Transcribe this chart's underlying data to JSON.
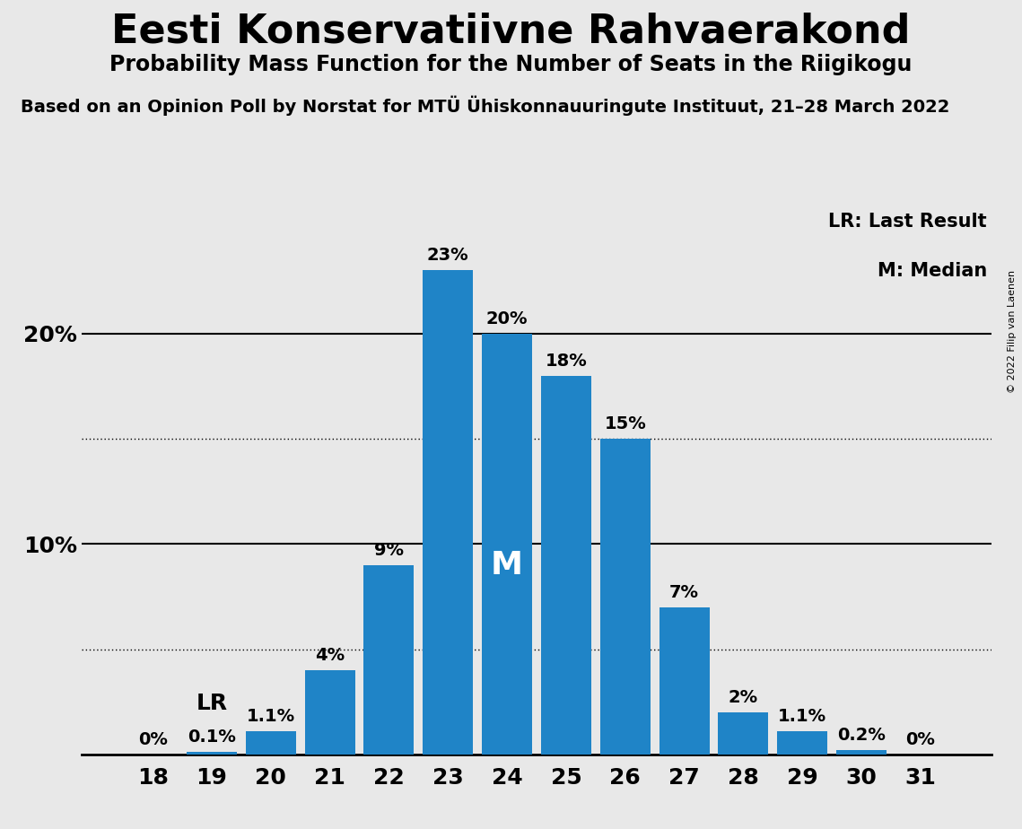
{
  "title": "Eesti Konservatiivne Rahvaerakond",
  "subtitle": "Probability Mass Function for the Number of Seats in the Riigikogu",
  "source_line": "Based on an Opinion Poll by Norstat for MTÜ Ühiskonnauuringute Instituut, 21–28 March 2022",
  "copyright": "© 2022 Filip van Laenen",
  "seats": [
    18,
    19,
    20,
    21,
    22,
    23,
    24,
    25,
    26,
    27,
    28,
    29,
    30,
    31
  ],
  "probabilities": [
    0.0,
    0.1,
    1.1,
    4.0,
    9.0,
    23.0,
    20.0,
    18.0,
    15.0,
    7.0,
    2.0,
    1.1,
    0.2,
    0.0
  ],
  "bar_color": "#1f84c7",
  "background_color": "#e8e8e8",
  "median_seat": 24,
  "lr_seat": 19,
  "legend_lr": "LR: Last Result",
  "legend_m": "M: Median",
  "solid_lines": [
    10.0,
    20.0
  ],
  "dotted_lines": [
    5.0,
    15.0
  ],
  "ylim": [
    0,
    26
  ],
  "title_fontsize": 32,
  "subtitle_fontsize": 17,
  "source_fontsize": 14,
  "tick_fontsize": 18,
  "label_fontsize": 14,
  "legend_fontsize": 15,
  "lr_fontsize": 18,
  "m_fontsize": 26
}
